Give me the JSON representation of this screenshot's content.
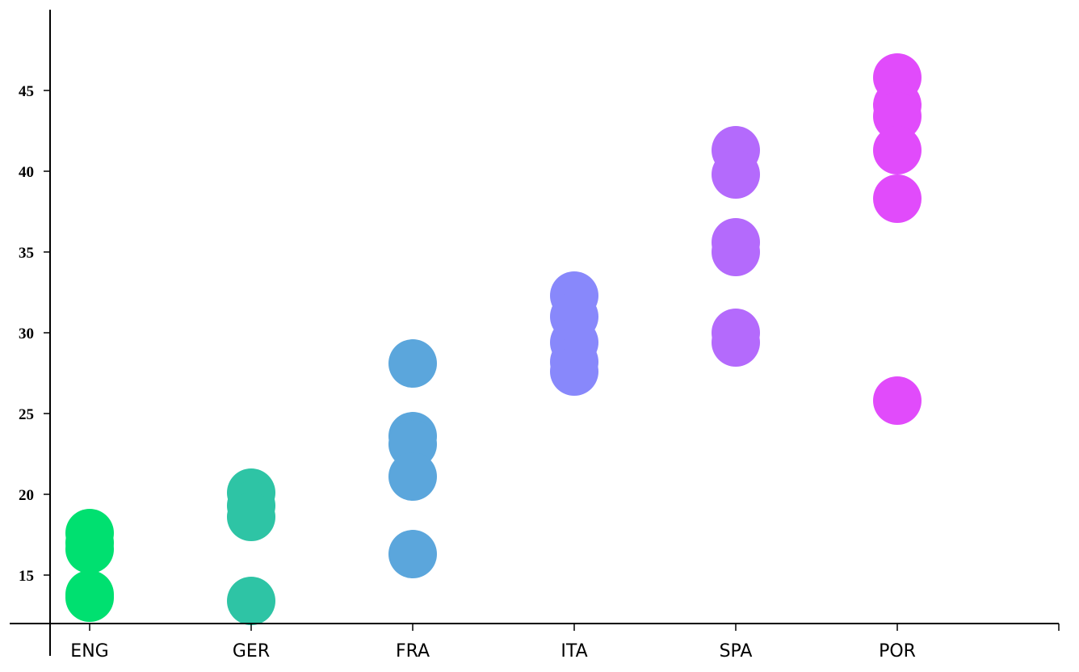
{
  "chart_data": {
    "type": "scatter",
    "title": "",
    "xlabel": "",
    "ylabel": "",
    "categories": [
      "ENG",
      "GER",
      "FRA",
      "ITA",
      "SPA",
      "POR"
    ],
    "ylim": [
      12,
      50
    ],
    "yticks": [
      15,
      20,
      25,
      30,
      35,
      40,
      45
    ],
    "y_tick_labels": [
      "15",
      "20",
      "25",
      "30",
      "35",
      "40",
      "45"
    ],
    "grid": false,
    "legend": "none",
    "colors": {
      "ENG": "#00e070",
      "GER": "#2ec4a5",
      "FRA": "#5ba6dc",
      "ITA": "#8888fb",
      "SPA": "#b46afc",
      "POR": "#e14bfb"
    },
    "points": [
      {
        "category": "ENG",
        "y": 17.6
      },
      {
        "category": "ENG",
        "y": 17.0
      },
      {
        "category": "ENG",
        "y": 16.6
      },
      {
        "category": "ENG",
        "y": 13.8
      },
      {
        "category": "ENG",
        "y": 13.6
      },
      {
        "category": "GER",
        "y": 20.1
      },
      {
        "category": "GER",
        "y": 19.3
      },
      {
        "category": "GER",
        "y": 18.6
      },
      {
        "category": "GER",
        "y": 13.4
      },
      {
        "category": "FRA",
        "y": 28.1
      },
      {
        "category": "FRA",
        "y": 23.6
      },
      {
        "category": "FRA",
        "y": 23.1
      },
      {
        "category": "FRA",
        "y": 21.1
      },
      {
        "category": "FRA",
        "y": 16.3
      },
      {
        "category": "ITA",
        "y": 32.3
      },
      {
        "category": "ITA",
        "y": 31.0
      },
      {
        "category": "ITA",
        "y": 29.4
      },
      {
        "category": "ITA",
        "y": 28.2
      },
      {
        "category": "ITA",
        "y": 27.6
      },
      {
        "category": "SPA",
        "y": 41.3
      },
      {
        "category": "SPA",
        "y": 39.8
      },
      {
        "category": "SPA",
        "y": 35.6
      },
      {
        "category": "SPA",
        "y": 35.0
      },
      {
        "category": "SPA",
        "y": 30.0
      },
      {
        "category": "SPA",
        "y": 29.4
      },
      {
        "category": "POR",
        "y": 45.8
      },
      {
        "category": "POR",
        "y": 44.1
      },
      {
        "category": "POR",
        "y": 43.4
      },
      {
        "category": "POR",
        "y": 41.3
      },
      {
        "category": "POR",
        "y": 38.3
      },
      {
        "category": "POR",
        "y": 25.8
      }
    ]
  }
}
